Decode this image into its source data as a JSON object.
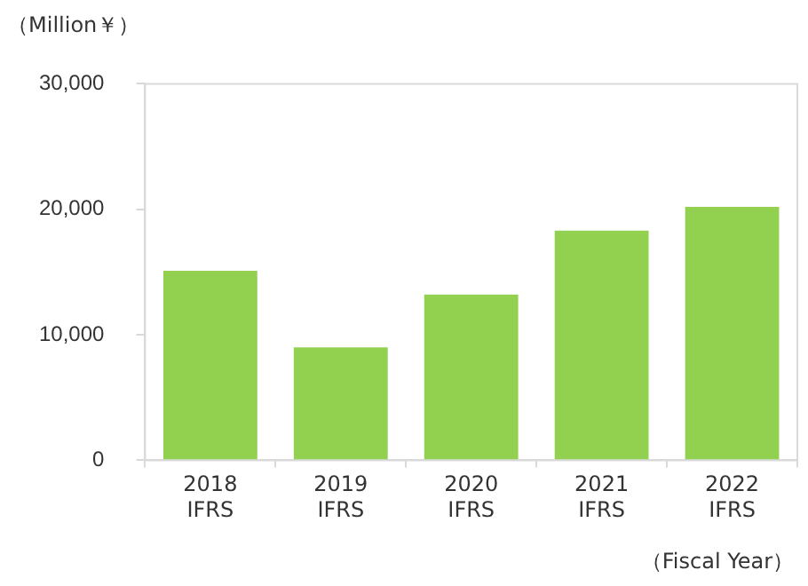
{
  "chart_data": {
    "type": "bar",
    "ylabel": "（Million￥）",
    "xlabel": "（Fiscal Year）",
    "categories": [
      "2018\nIFRS",
      "2019\nIFRS",
      "2020\nIFRS",
      "2021\nIFRS",
      "2022\nIFRS"
    ],
    "values": [
      15100,
      9000,
      13200,
      18300,
      20200
    ],
    "color": "#92d050",
    "ylim": [
      0,
      30000
    ],
    "yticks": [
      0,
      {
        "value": 10000,
        "label": "10,000"
      },
      {
        "value": 20000,
        "label": "20,000"
      },
      {
        "value": 30000,
        "label": "30,000"
      }
    ],
    "grid": false,
    "legend": false
  }
}
